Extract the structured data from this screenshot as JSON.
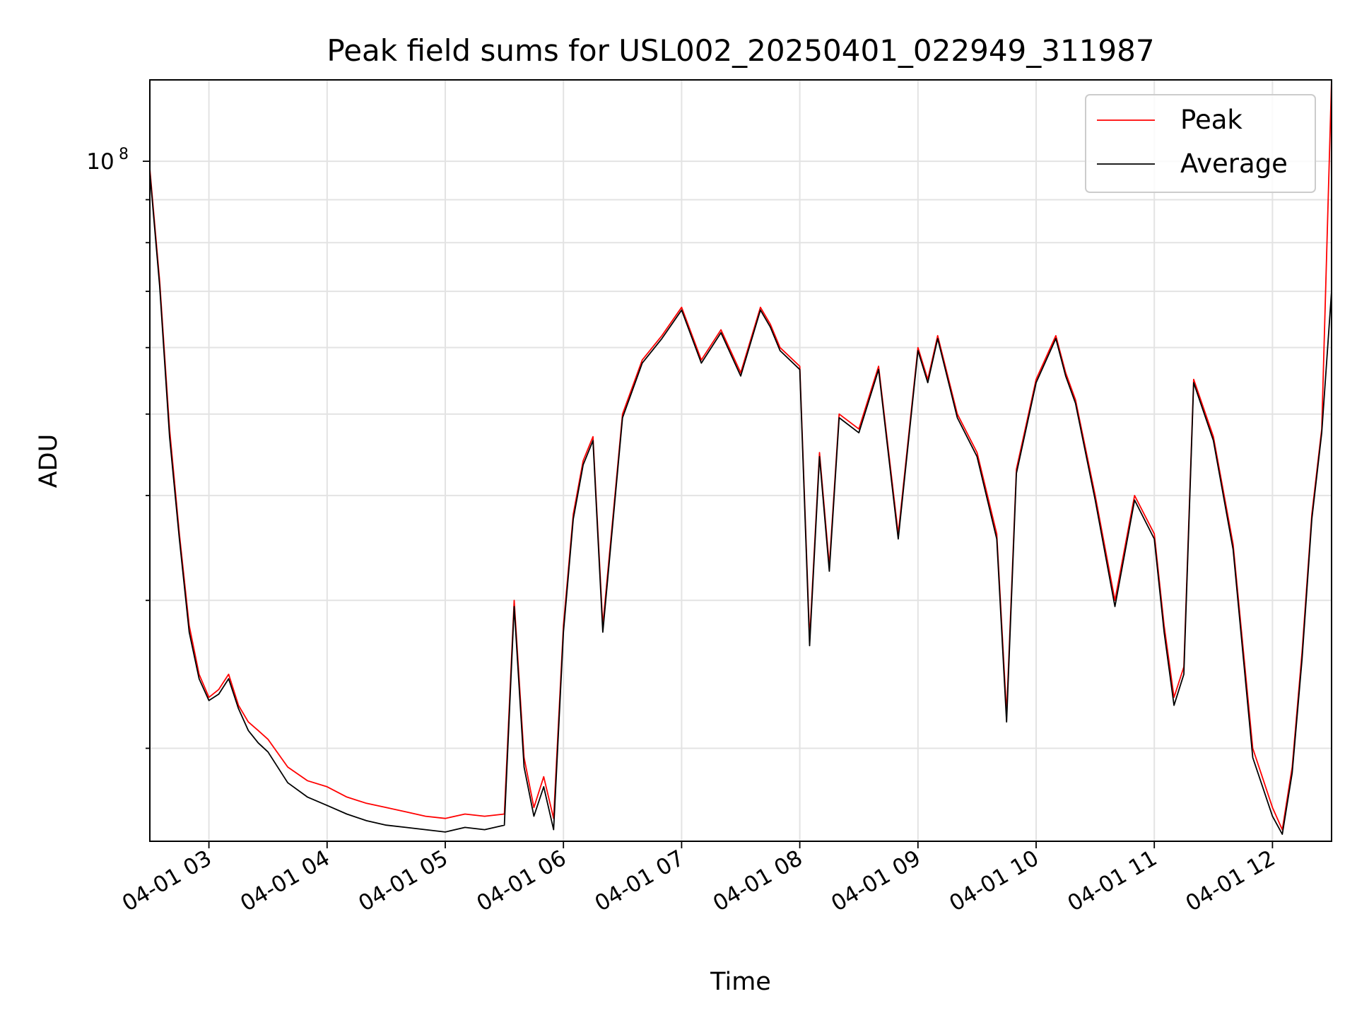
{
  "chart_data": {
    "type": "line",
    "title": "Peak field sums for USL002_20250401_022949_311987",
    "xlabel": "Time",
    "ylabel": "ADU",
    "y_scale": "log",
    "x_range": [
      "2025-04-01 02:30",
      "2025-04-01 12:30"
    ],
    "ylim": [
      15500000,
      125000000
    ],
    "x_ticks": [
      "04-01 03",
      "04-01 04",
      "04-01 05",
      "04-01 06",
      "04-01 07",
      "04-01 08",
      "04-01 09",
      "04-01 10",
      "04-01 11",
      "04-01 12"
    ],
    "y_tick_label": "10^8",
    "grid": true,
    "legend": "top-right",
    "series": [
      {
        "name": "Peak",
        "color": "#ff0000",
        "x": [
          "02:30",
          "02:35",
          "02:40",
          "02:45",
          "02:50",
          "02:55",
          "03:00",
          "03:05",
          "03:10",
          "03:15",
          "03:20",
          "03:25",
          "03:30",
          "03:40",
          "03:50",
          "04:00",
          "04:10",
          "04:20",
          "04:30",
          "04:40",
          "04:50",
          "05:00",
          "05:10",
          "05:20",
          "05:30",
          "05:35",
          "05:40",
          "05:45",
          "05:50",
          "05:55",
          "06:00",
          "06:05",
          "06:10",
          "06:15",
          "06:20",
          "06:30",
          "06:40",
          "06:50",
          "07:00",
          "07:10",
          "07:20",
          "07:30",
          "07:40",
          "07:45",
          "07:50",
          "08:00",
          "08:05",
          "08:10",
          "08:15",
          "08:20",
          "08:30",
          "08:40",
          "08:50",
          "09:00",
          "09:05",
          "09:10",
          "09:20",
          "09:30",
          "09:40",
          "09:45",
          "09:50",
          "10:00",
          "10:10",
          "10:15",
          "10:20",
          "10:30",
          "10:40",
          "10:50",
          "11:00",
          "11:05",
          "11:10",
          "11:15",
          "11:20",
          "11:30",
          "11:40",
          "11:50",
          "12:00",
          "12:05",
          "12:10",
          "12:15",
          "12:20",
          "12:25",
          "12:30"
        ],
        "values": [
          98000000,
          72000000,
          48000000,
          36000000,
          28000000,
          24500000,
          23000000,
          23500000,
          24500000,
          22500000,
          21500000,
          21000000,
          20500000,
          19000000,
          18300000,
          18000000,
          17500000,
          17200000,
          17000000,
          16800000,
          16600000,
          16500000,
          16700000,
          16600000,
          16700000,
          30000000,
          19500000,
          17000000,
          18500000,
          16500000,
          28000000,
          38000000,
          44000000,
          47000000,
          28000000,
          50000000,
          58000000,
          62000000,
          67000000,
          58000000,
          63000000,
          56000000,
          67000000,
          64000000,
          60000000,
          57000000,
          27000000,
          45000000,
          33000000,
          50000000,
          48000000,
          57000000,
          36000000,
          60000000,
          55000000,
          62000000,
          50000000,
          45000000,
          36000000,
          22000000,
          43000000,
          55000000,
          62000000,
          56000000,
          52000000,
          40000000,
          30000000,
          40000000,
          36000000,
          28000000,
          23000000,
          25000000,
          55000000,
          47000000,
          35000000,
          20000000,
          17000000,
          16000000,
          19000000,
          26000000,
          38000000,
          48000000,
          125000000
        ]
      },
      {
        "name": "Average",
        "color": "#000000",
        "x": [
          "02:30",
          "02:35",
          "02:40",
          "02:45",
          "02:50",
          "02:55",
          "03:00",
          "03:05",
          "03:10",
          "03:15",
          "03:20",
          "03:25",
          "03:30",
          "03:40",
          "03:50",
          "04:00",
          "04:10",
          "04:20",
          "04:30",
          "04:40",
          "04:50",
          "05:00",
          "05:10",
          "05:20",
          "05:30",
          "05:35",
          "05:40",
          "05:45",
          "05:50",
          "05:55",
          "06:00",
          "06:05",
          "06:10",
          "06:15",
          "06:20",
          "06:30",
          "06:40",
          "06:50",
          "07:00",
          "07:10",
          "07:20",
          "07:30",
          "07:40",
          "07:45",
          "07:50",
          "08:00",
          "08:05",
          "08:10",
          "08:15",
          "08:20",
          "08:30",
          "08:40",
          "08:50",
          "09:00",
          "09:05",
          "09:10",
          "09:20",
          "09:30",
          "09:40",
          "09:45",
          "09:50",
          "10:00",
          "10:10",
          "10:15",
          "10:20",
          "10:30",
          "10:40",
          "10:50",
          "11:00",
          "11:05",
          "11:10",
          "11:15",
          "11:20",
          "11:30",
          "11:40",
          "11:50",
          "12:00",
          "12:05",
          "12:10",
          "12:15",
          "12:20",
          "12:25",
          "12:30"
        ],
        "values": [
          97000000,
          71000000,
          47000000,
          35500000,
          27500000,
          24200000,
          22800000,
          23200000,
          24200000,
          22300000,
          21000000,
          20300000,
          19800000,
          18200000,
          17500000,
          17100000,
          16700000,
          16400000,
          16200000,
          16100000,
          16000000,
          15900000,
          16100000,
          16000000,
          16200000,
          29500000,
          19000000,
          16600000,
          18000000,
          16000000,
          27500000,
          37500000,
          43500000,
          46500000,
          27500000,
          49500000,
          57500000,
          61500000,
          66500000,
          57500000,
          62500000,
          55500000,
          66500000,
          63500000,
          59500000,
          56500000,
          26500000,
          44500000,
          32500000,
          49500000,
          47500000,
          56500000,
          35500000,
          59500000,
          54500000,
          61500000,
          49500000,
          44500000,
          35500000,
          21500000,
          42500000,
          54500000,
          61500000,
          55500000,
          51500000,
          39500000,
          29500000,
          39500000,
          35500000,
          27500000,
          22500000,
          24500000,
          54500000,
          46500000,
          34500000,
          19500000,
          16600000,
          15800000,
          18700000,
          25500000,
          37500000,
          47500000,
          70000000
        ]
      }
    ]
  }
}
